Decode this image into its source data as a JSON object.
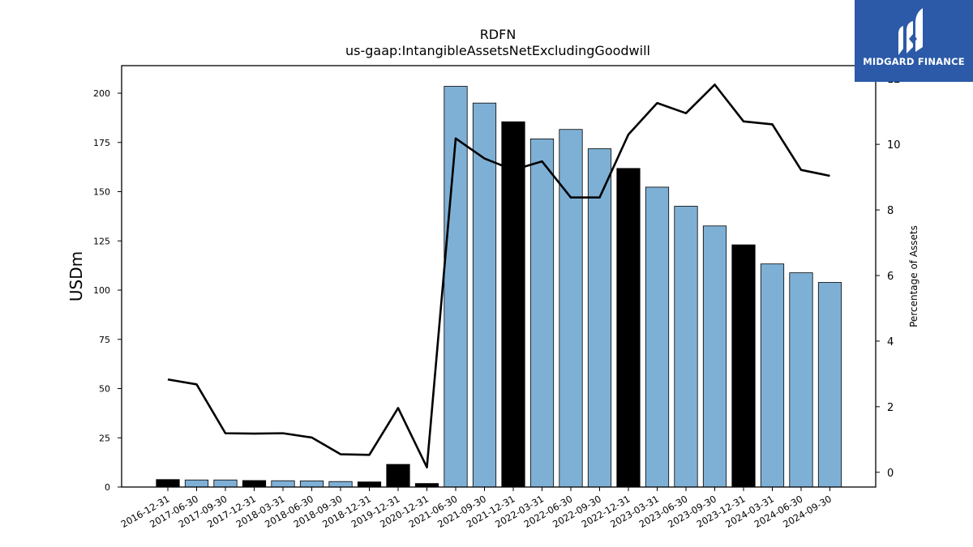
{
  "chart_data": {
    "type": "bar",
    "title": "RDFN",
    "subtitle": "us-gaap:IntangibleAssetsNetExcludingGoodwill",
    "ylabel": "USDm",
    "y2label": "Percentage of Assets",
    "categories": [
      "2016-12-31",
      "2017-06-30",
      "2017-09-30",
      "2017-12-31",
      "2018-03-31",
      "2018-06-30",
      "2018-09-30",
      "2018-12-31",
      "2019-12-31",
      "2020-12-31",
      "2021-06-30",
      "2021-09-30",
      "2021-12-31",
      "2022-03-31",
      "2022-06-30",
      "2022-09-30",
      "2022-12-31",
      "2023-03-31",
      "2023-06-30",
      "2023-09-30",
      "2023-12-31",
      "2024-03-31",
      "2024-06-30",
      "2024-09-30"
    ],
    "series": [
      {
        "type": "bar",
        "values": [
          3.8,
          3.6,
          3.6,
          3.3,
          3.2,
          3.1,
          2.8,
          2.6,
          11.5,
          1.8,
          203.5,
          195.0,
          185.5,
          176.8,
          181.6,
          171.8,
          161.8,
          152.3,
          142.6,
          132.6,
          123.0,
          113.3,
          108.8,
          103.9
        ],
        "annual_flags": [
          true,
          false,
          false,
          true,
          false,
          false,
          false,
          true,
          true,
          true,
          false,
          false,
          true,
          false,
          false,
          false,
          true,
          false,
          false,
          false,
          true,
          false,
          false,
          false
        ]
      },
      {
        "type": "line",
        "axis": "right",
        "values": [
          2.83,
          2.68,
          1.19,
          1.18,
          1.19,
          1.06,
          0.55,
          0.53,
          1.96,
          0.15,
          10.18,
          9.57,
          9.22,
          9.48,
          8.38,
          8.38,
          10.3,
          11.26,
          10.95,
          11.82,
          10.7,
          10.61,
          9.22,
          9.04
        ]
      }
    ],
    "yticks": [
      0,
      25,
      50,
      75,
      100,
      125,
      150,
      175,
      200
    ],
    "y2ticks": [
      0,
      2,
      4,
      6,
      8,
      10,
      12
    ],
    "ylim": [
      0,
      214
    ],
    "y2lim": [
      -0.45,
      12.4
    ],
    "colors": {
      "annual_bar": "#000000",
      "quarterly_bar": "#7eb0d5",
      "line": "#000000"
    },
    "grid": false,
    "legend": "none"
  },
  "logo": {
    "text": "MIDGARD FINANCE",
    "bg": "#2c5aa8"
  }
}
